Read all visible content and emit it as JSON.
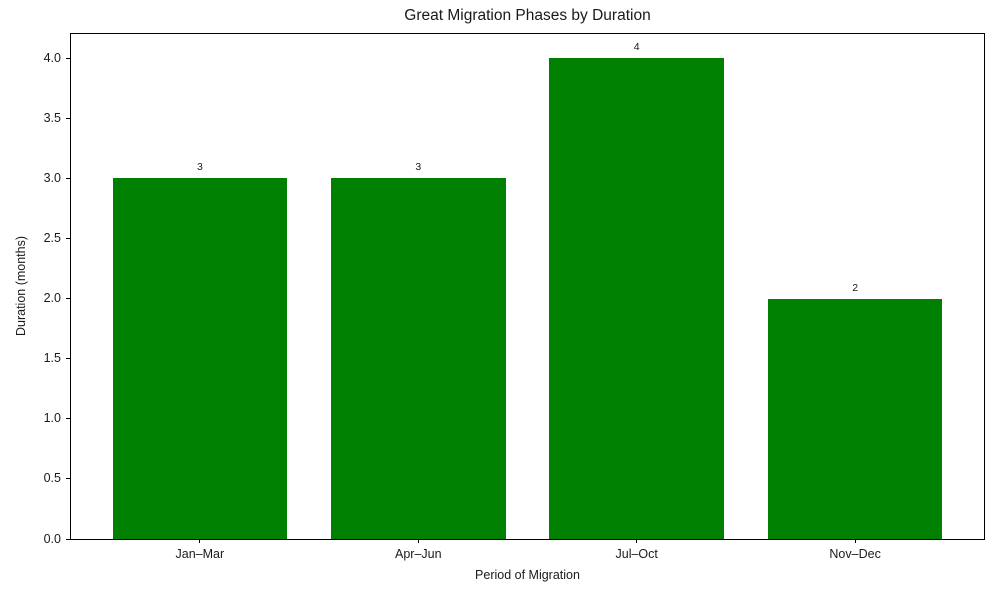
{
  "chart_data": {
    "type": "bar",
    "title": "Great Migration Phases by Duration",
    "xlabel": "Period of Migration",
    "ylabel": "Duration (months)",
    "categories": [
      "Jan–Mar",
      "Apr–Jun",
      "Jul–Oct",
      "Nov–Dec"
    ],
    "values": [
      3,
      3,
      4,
      2
    ],
    "bar_value_labels": [
      "3",
      "3",
      "4",
      "2"
    ],
    "bar_color": "#008000",
    "background_color": "#ffffff",
    "text_color": "#1a1a1a",
    "ylim": [
      0,
      4.2
    ],
    "xlim": [
      -0.59,
      3.59
    ],
    "bar_width_units": 0.8,
    "yticks": [
      "0.0",
      "0.5",
      "1.0",
      "1.5",
      "2.0",
      "2.5",
      "3.0",
      "3.5",
      "4.0"
    ],
    "grid": false,
    "legend_position": "none"
  }
}
